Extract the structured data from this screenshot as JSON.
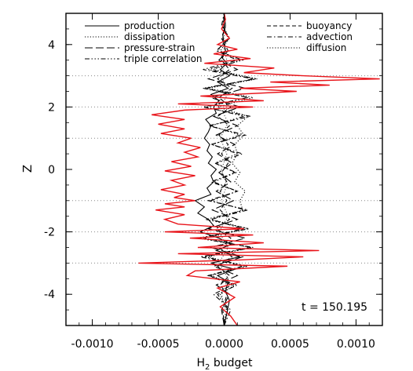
{
  "chart_data": {
    "type": "line",
    "xlabel": "H",
    "xlabel_sub": "2",
    "xlabel_rest": " budget",
    "ylabel": "Z",
    "xlim": [
      -0.0012,
      0.0012
    ],
    "ylim": [
      -5,
      5
    ],
    "x_ticks": [
      -0.001,
      -0.0005,
      0.0,
      0.0005,
      0.001
    ],
    "x_tick_labels": [
      "-0.0010",
      "-0.0005",
      "0.0000",
      "0.0005",
      "0.0010"
    ],
    "y_ticks": [
      -4,
      -2,
      0,
      2,
      4
    ],
    "y_tick_labels": [
      "-4",
      "-2",
      "0",
      "2",
      "4"
    ],
    "reference_lines_z": [
      -3,
      -2,
      -1,
      1,
      2,
      3
    ],
    "annotation": "t = 150.195",
    "legend_left": [
      {
        "name": "production",
        "dash": "solid"
      },
      {
        "name": "dissipation",
        "dash": "dotted"
      },
      {
        "name": "pressure-strain",
        "dash": "longdash"
      },
      {
        "name": "triple correlation",
        "dash": "dashdotdotdot"
      }
    ],
    "legend_right": [
      {
        "name": "buoyancy",
        "dash": "dashed"
      },
      {
        "name": "advection",
        "dash": "dashdot"
      },
      {
        "name": "diffusion",
        "dash": "dotted"
      }
    ],
    "series": [
      {
        "key": "production",
        "color": "#000000",
        "dash": "solid",
        "z": [
          -5.0,
          -4.6,
          -4.2,
          -3.9,
          -3.6,
          -3.4,
          -3.2,
          -3.0,
          -2.8,
          -2.6,
          -2.4,
          -2.2,
          -2.0,
          -1.8,
          -1.6,
          -1.4,
          -1.2,
          -1.0,
          -0.8,
          -0.6,
          -0.4,
          -0.2,
          0.0,
          0.2,
          0.4,
          0.6,
          0.8,
          1.0,
          1.2,
          1.4,
          1.6,
          1.8,
          2.0,
          2.2,
          2.4,
          2.6,
          2.8,
          3.0,
          3.2,
          3.4,
          3.6,
          3.8,
          4.0,
          4.3,
          4.6,
          5.0
        ],
        "x": [
          0.0,
          2e-05,
          4e-05,
          1e-05,
          3e-05,
          -5e-05,
          8e-05,
          -0.0001,
          0.00012,
          -6e-05,
          5e-05,
          -4e-05,
          -0.00018,
          -8e-05,
          -0.00012,
          -0.0002,
          -0.00015,
          -0.00022,
          -0.0001,
          -0.00013,
          -8e-05,
          -0.0001,
          -6e-05,
          -0.00012,
          -9e-05,
          -0.00013,
          -0.00011,
          -0.00015,
          -0.00012,
          -0.0001,
          -0.00014,
          -6e-05,
          -8e-05,
          -4e-05,
          -0.0001,
          3e-05,
          -5e-05,
          4e-05,
          -3e-05,
          2e-05,
          -2e-05,
          1e-05,
          0.0,
          -1e-05,
          1e-05,
          0.0
        ]
      },
      {
        "key": "dissipation",
        "color": "#000000",
        "dash": "dotted",
        "z": [
          -5.0,
          -4.5,
          -4.0,
          -3.7,
          -3.4,
          -3.1,
          -2.8,
          -2.5,
          -2.2,
          -1.9,
          -1.6,
          -1.3,
          -1.0,
          -0.7,
          -0.4,
          -0.1,
          0.2,
          0.5,
          0.8,
          1.1,
          1.4,
          1.7,
          2.0,
          2.3,
          2.6,
          2.9,
          3.2,
          3.5,
          3.8,
          4.2,
          4.6,
          5.0
        ],
        "x": [
          0.0,
          2e-05,
          -3e-05,
          8e-05,
          -0.0001,
          0.00015,
          -0.00012,
          0.0002,
          -0.00015,
          0.00018,
          -0.0001,
          0.00014,
          0.00012,
          0.00016,
          8e-05,
          0.00012,
          6e-05,
          0.0001,
          8e-05,
          0.00015,
          0.0001,
          0.00018,
          -5e-05,
          0.00022,
          -0.00012,
          0.00025,
          -8e-05,
          0.00012,
          -3e-05,
          4e-05,
          -1e-05,
          0.0
        ]
      },
      {
        "key": "pressure-strain",
        "color": "#000000",
        "dash": "longdash",
        "z": [
          -5.0,
          -4.5,
          -4.0,
          -3.7,
          -3.4,
          -3.1,
          -2.8,
          -2.5,
          -2.2,
          -1.9,
          -1.6,
          -1.3,
          -1.0,
          -0.7,
          -0.4,
          -0.1,
          0.2,
          0.5,
          0.8,
          1.1,
          1.4,
          1.7,
          2.0,
          2.3,
          2.6,
          2.9,
          3.2,
          3.5,
          3.8,
          4.2,
          4.6,
          5.0
        ],
        "x": [
          0.0,
          -2e-05,
          4e-05,
          -6e-05,
          0.0001,
          -8e-05,
          0.00014,
          -0.0001,
          0.00016,
          -0.00012,
          0.0001,
          -9e-05,
          7e-05,
          -6e-05,
          5e-05,
          -4e-05,
          6e-05,
          -5e-05,
          8e-05,
          -6e-05,
          0.0001,
          -8e-05,
          0.00012,
          -0.0001,
          0.00016,
          -0.00012,
          0.0001,
          -4e-05,
          3e-05,
          -2e-05,
          1e-05,
          0.0
        ]
      },
      {
        "key": "triple correlation",
        "color": "#000000",
        "dash": "dashdotdotdot",
        "z": [
          -5.0,
          -4.5,
          -4.0,
          -3.7,
          -3.4,
          -3.1,
          -2.8,
          -2.5,
          -2.2,
          -1.9,
          -1.6,
          -1.3,
          -1.0,
          -0.7,
          -0.4,
          -0.1,
          0.2,
          0.5,
          0.8,
          1.1,
          1.4,
          1.7,
          2.0,
          2.3,
          2.6,
          2.9,
          3.2,
          3.5,
          3.8,
          4.2,
          4.6,
          5.0
        ],
        "x": [
          0.0,
          3e-05,
          -5e-05,
          0.0001,
          -0.00012,
          0.00018,
          -0.00015,
          0.00022,
          -0.0002,
          0.00019,
          -0.00014,
          0.00016,
          -0.0001,
          0.0001,
          -8e-05,
          9e-05,
          -7e-05,
          0.0001,
          -9e-05,
          0.00012,
          -0.0001,
          0.00015,
          -0.00014,
          0.00018,
          -0.00016,
          0.00024,
          -0.00012,
          0.00014,
          -5e-05,
          3e-05,
          -1e-05,
          0.0
        ]
      },
      {
        "key": "buoyancy",
        "color": "#000000",
        "dash": "dashed",
        "z": [
          -5.0,
          -4.5,
          -4.0,
          -3.7,
          -3.4,
          -3.1,
          -2.8,
          -2.5,
          -2.2,
          -1.9,
          -1.6,
          -1.3,
          -1.0,
          -0.7,
          -0.4,
          -0.1,
          0.2,
          0.5,
          0.8,
          1.1,
          1.4,
          1.7,
          2.0,
          2.3,
          2.6,
          2.9,
          3.2,
          3.5,
          3.8,
          4.2,
          4.6,
          5.0
        ],
        "x": [
          0.0,
          -1e-05,
          2e-05,
          -3e-05,
          4e-05,
          -5e-05,
          6e-05,
          -4e-05,
          5e-05,
          -6e-05,
          4e-05,
          -3e-05,
          2e-05,
          -3e-05,
          2e-05,
          -2e-05,
          3e-05,
          -2e-05,
          3e-05,
          -4e-05,
          4e-05,
          -5e-05,
          5e-05,
          -4e-05,
          6e-05,
          -5e-05,
          4e-05,
          -2e-05,
          1e-05,
          -1e-05,
          0.0,
          0.0
        ]
      },
      {
        "key": "advection",
        "color": "#000000",
        "dash": "dashdot",
        "z": [
          -5.0,
          -4.5,
          -4.0,
          -3.7,
          -3.4,
          -3.1,
          -2.8,
          -2.5,
          -2.2,
          -1.9,
          -1.6,
          -1.3,
          -1.0,
          -0.7,
          -0.4,
          -0.1,
          0.2,
          0.5,
          0.8,
          1.1,
          1.4,
          1.7,
          2.0,
          2.3,
          2.6,
          2.9,
          3.2,
          3.5,
          3.8,
          4.2,
          4.6,
          5.0
        ],
        "x": [
          0.0,
          5e-05,
          -8e-05,
          6e-05,
          -0.00012,
          0.00014,
          -0.00018,
          0.0002,
          -0.00016,
          0.00014,
          -0.0001,
          0.00018,
          -0.00012,
          0.0001,
          -0.0001,
          8e-05,
          -6e-05,
          0.00014,
          -0.0001,
          0.00016,
          -0.00012,
          0.0002,
          -0.00016,
          0.00018,
          -0.00014,
          0.00022,
          -0.00016,
          0.0001,
          -6e-05,
          4e-05,
          -2e-05,
          0.0
        ]
      },
      {
        "key": "diffusion",
        "color": "#555555",
        "dash": "dotted",
        "z": [
          -5.0,
          -4.5,
          -4.0,
          -3.5,
          -3.0,
          -2.5,
          -2.0,
          -1.5,
          -1.0,
          -0.5,
          0.0,
          0.5,
          1.0,
          1.5,
          2.0,
          2.5,
          3.0,
          3.5,
          4.0,
          4.5,
          5.0
        ],
        "x": [
          0.0,
          1e-05,
          -2e-05,
          3e-05,
          -4e-05,
          3e-05,
          -4e-05,
          3e-05,
          -2e-05,
          2e-05,
          -2e-05,
          2e-05,
          -3e-05,
          3e-05,
          -3e-05,
          4e-05,
          -3e-05,
          2e-05,
          -1e-05,
          1e-05,
          0.0
        ]
      },
      {
        "key": "red",
        "color": "#e8141a",
        "dash": "solid",
        "z": [
          -5.0,
          -4.7,
          -4.4,
          -4.1,
          -3.8,
          -3.6,
          -3.4,
          -3.25,
          -3.1,
          -3.0,
          -2.9,
          -2.8,
          -2.7,
          -2.6,
          -2.5,
          -2.35,
          -2.2,
          -2.1,
          -2.0,
          -1.9,
          -1.75,
          -1.6,
          -1.45,
          -1.3,
          -1.2,
          -1.1,
          -1.0,
          -0.9,
          -0.8,
          -0.65,
          -0.5,
          -0.35,
          -0.2,
          -0.05,
          0.1,
          0.25,
          0.4,
          0.55,
          0.7,
          0.85,
          1.0,
          1.15,
          1.3,
          1.45,
          1.6,
          1.75,
          1.9,
          2.0,
          2.1,
          2.2,
          2.35,
          2.5,
          2.6,
          2.7,
          2.8,
          2.9,
          3.0,
          3.1,
          3.25,
          3.4,
          3.55,
          3.7,
          3.85,
          4.0,
          4.2,
          4.5,
          4.8,
          5.0
        ],
        "x": [
          0.0001,
          5e-05,
          -3e-05,
          8e-05,
          -5e-05,
          0.00012,
          -0.00028,
          -0.00022,
          0.00048,
          -0.00065,
          0.00012,
          0.0006,
          -0.00035,
          0.00072,
          -0.0002,
          0.0003,
          -0.00026,
          0.00022,
          -0.00045,
          0.00015,
          -0.00035,
          -0.00045,
          -0.0003,
          -0.00052,
          -0.0003,
          -0.00045,
          -0.00022,
          -0.00038,
          -0.0003,
          -0.00048,
          -0.0003,
          -0.0004,
          -0.00022,
          -0.00045,
          -0.00025,
          -0.0004,
          -0.0002,
          -0.0003,
          -0.00018,
          -0.00035,
          -0.00025,
          -0.00048,
          -0.0003,
          -0.0005,
          -0.0003,
          -0.00055,
          -0.0003,
          0.00022,
          -0.00035,
          0.0003,
          -0.00018,
          0.00055,
          0.00012,
          0.0008,
          0.00035,
          0.00118,
          0.0006,
          0.00015,
          0.00038,
          -0.00015,
          0.0002,
          -8e-05,
          0.0001,
          -5e-05,
          4e-05,
          -2e-05,
          1e-05,
          0.0
        ]
      }
    ]
  }
}
